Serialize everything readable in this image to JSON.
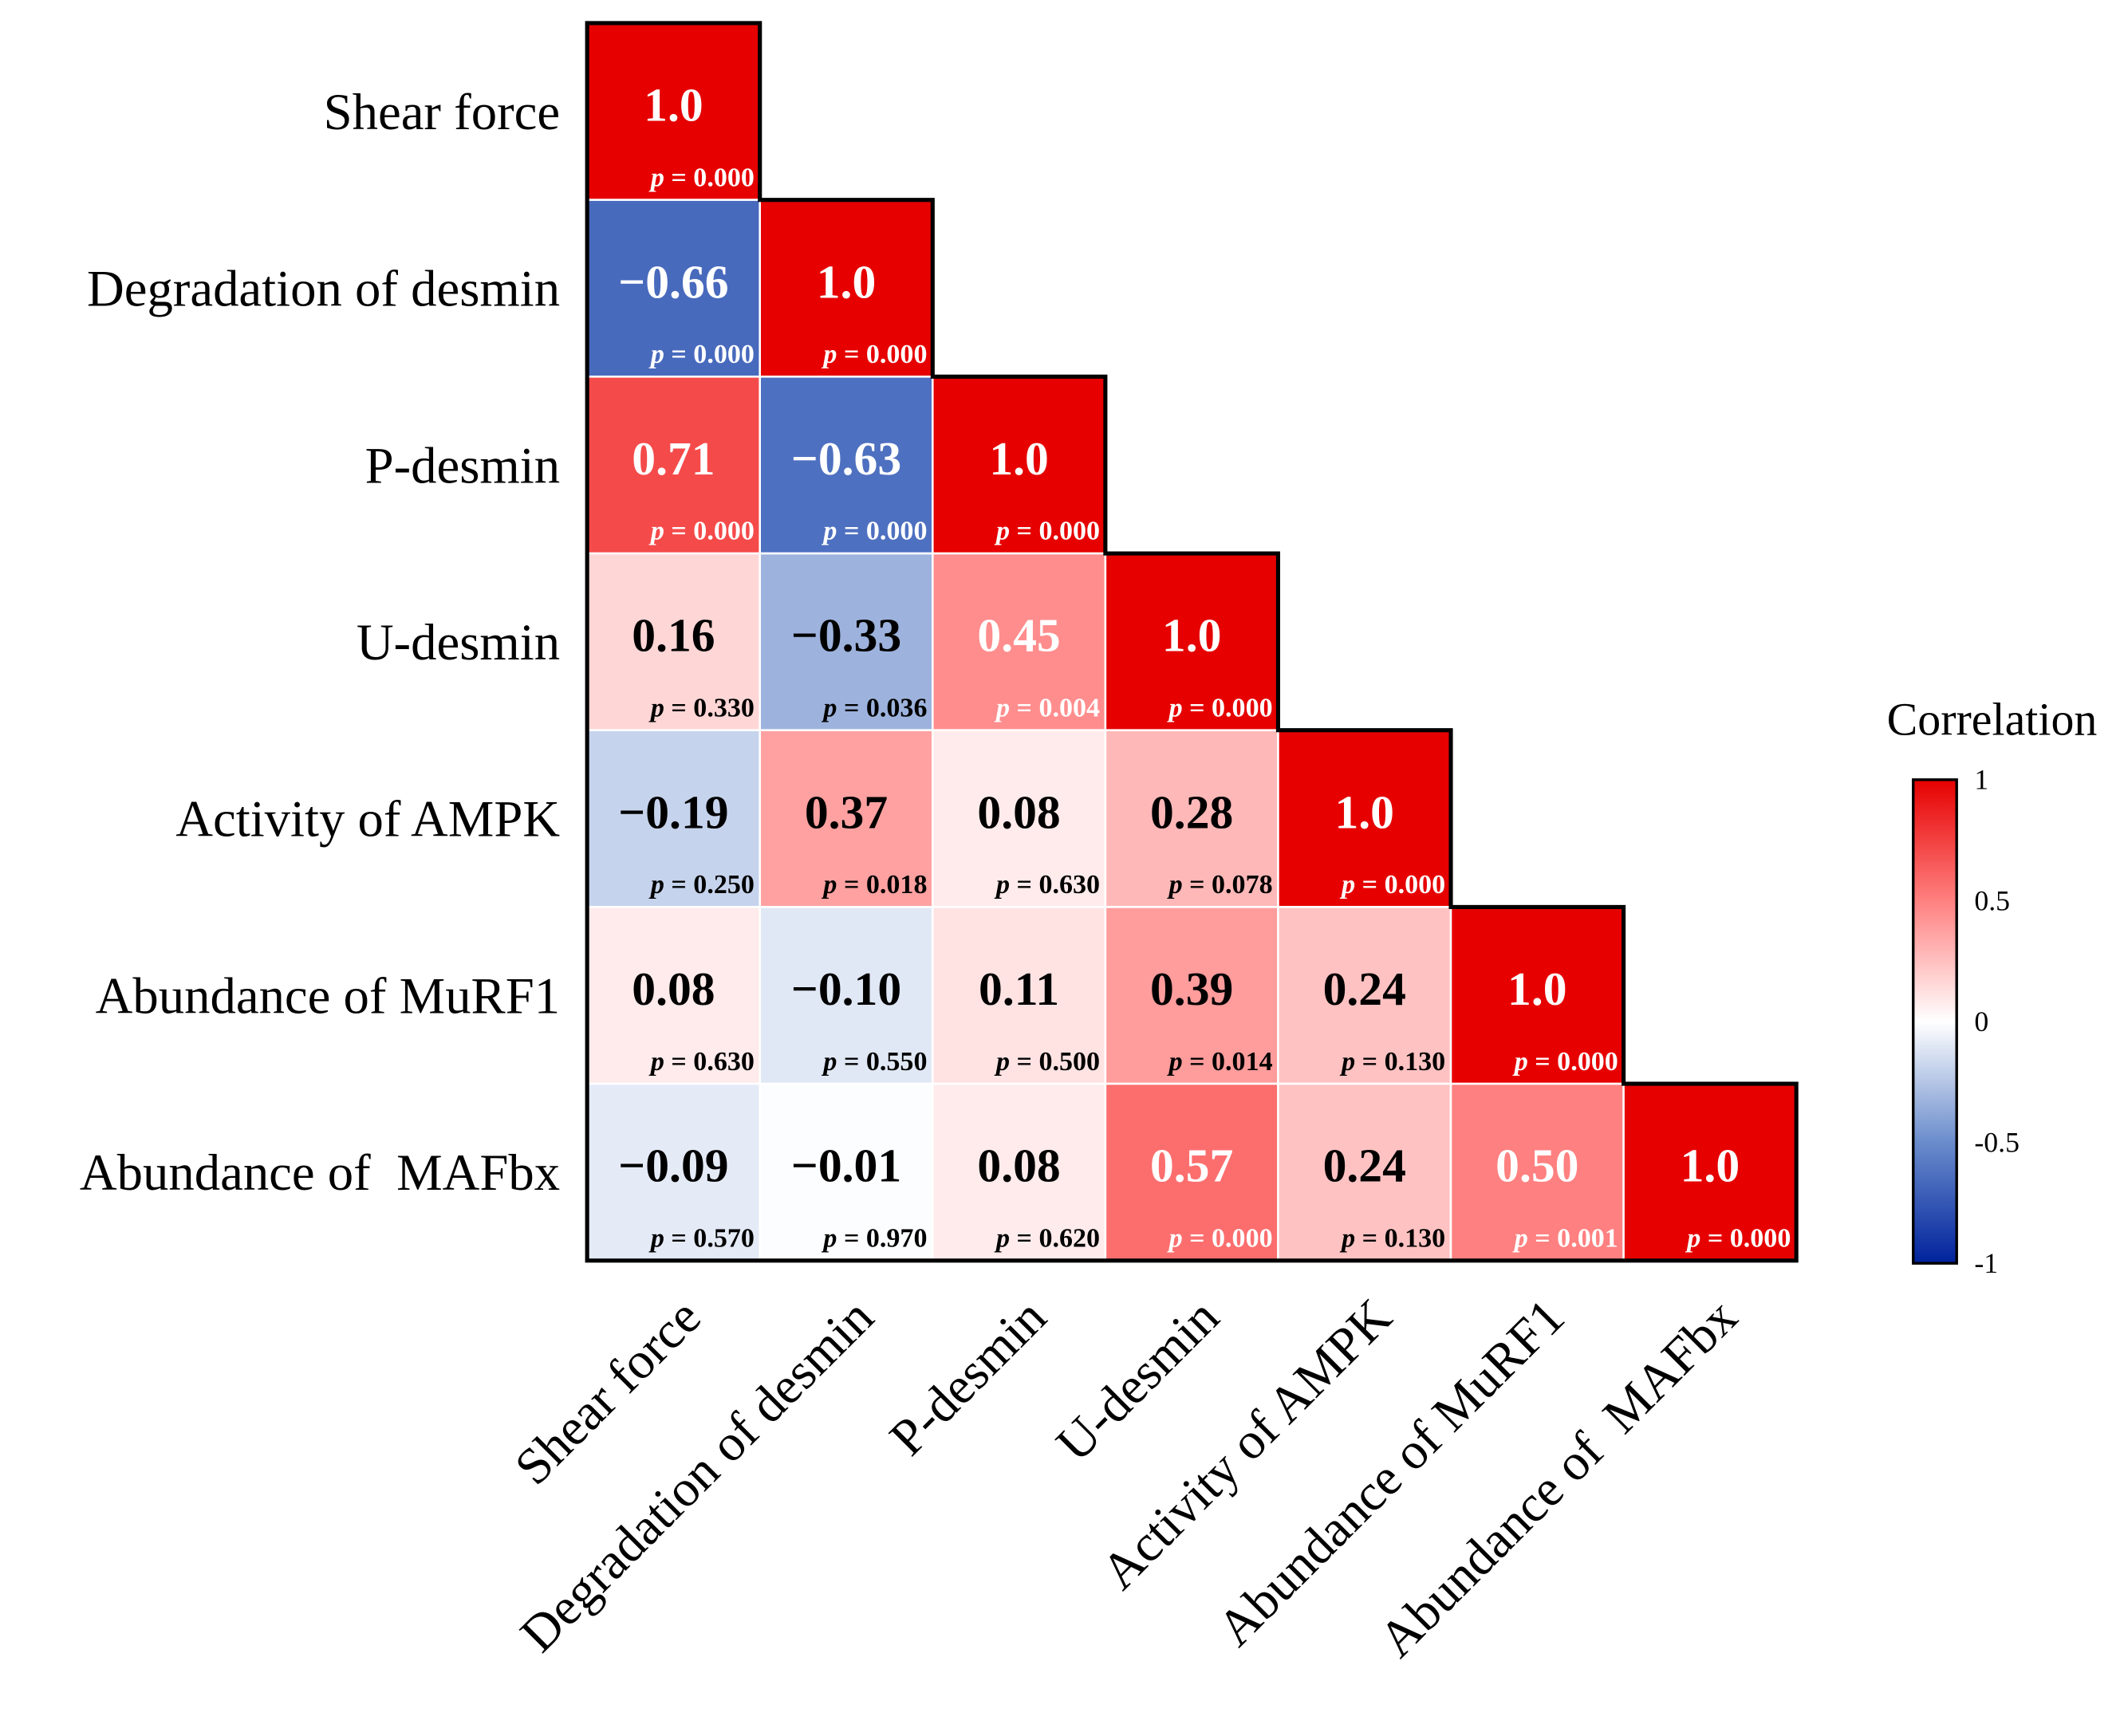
{
  "chart_data": {
    "type": "heatmap",
    "title": "",
    "legend_title": "Correlation",
    "legend_placement": "right",
    "legend_ticks": [
      "1",
      "0.5",
      "0",
      "-0.5",
      "-1"
    ],
    "legend_tick_values": [
      1,
      0.5,
      0,
      -0.5,
      -1
    ],
    "color_range": [
      -1,
      1
    ],
    "colors": {
      "neg": "#00229c",
      "neg_mid": "#6a8ccc",
      "zero": "#ffffff",
      "pos_mid": "#ff8080",
      "pos": "#e60000"
    },
    "row_labels": [
      "Shear force",
      "Degradation of desmin",
      "P-desmin",
      "U-desmin",
      "Activity of AMPK",
      "Abundance of MuRF1",
      "Abundance of  MAFbx"
    ],
    "col_labels": [
      "Shear force",
      "Degradation of desmin",
      "P-desmin",
      "U-desmin",
      "Activity of AMPK",
      "Abundance of MuRF1",
      "Abundance of  MAFbx"
    ],
    "p_prefix": "p",
    "values": [
      [
        1.0
      ],
      [
        -0.66,
        1.0
      ],
      [
        0.71,
        -0.63,
        1.0
      ],
      [
        0.16,
        -0.33,
        0.45,
        1.0
      ],
      [
        -0.19,
        0.37,
        0.08,
        0.28,
        1.0
      ],
      [
        0.08,
        -0.1,
        0.11,
        0.39,
        0.24,
        1.0
      ],
      [
        -0.09,
        -0.01,
        0.08,
        0.57,
        0.24,
        0.5,
        1.0
      ]
    ],
    "value_labels": [
      [
        "1.0"
      ],
      [
        "−0.66",
        "1.0"
      ],
      [
        "0.71",
        "−0.63",
        "1.0"
      ],
      [
        "0.16",
        "−0.33",
        "0.45",
        "1.0"
      ],
      [
        "−0.19",
        "0.37",
        "0.08",
        "0.28",
        "1.0"
      ],
      [
        "0.08",
        "−0.10",
        "0.11",
        "0.39",
        "0.24",
        "1.0"
      ],
      [
        "−0.09",
        "−0.01",
        "0.08",
        "0.57",
        "0.24",
        "0.50",
        "1.0"
      ]
    ],
    "p_values": [
      [
        "0.000"
      ],
      [
        "0.000",
        "0.000"
      ],
      [
        "0.000",
        "0.000",
        "0.000"
      ],
      [
        "0.330",
        "0.036",
        "0.004",
        "0.000"
      ],
      [
        "0.250",
        "0.018",
        "0.630",
        "0.078",
        "0.000"
      ],
      [
        "0.630",
        "0.550",
        "0.500",
        "0.014",
        "0.130",
        "0.000"
      ],
      [
        "0.570",
        "0.970",
        "0.620",
        "0.000",
        "0.130",
        "0.001",
        "0.000"
      ]
    ]
  }
}
